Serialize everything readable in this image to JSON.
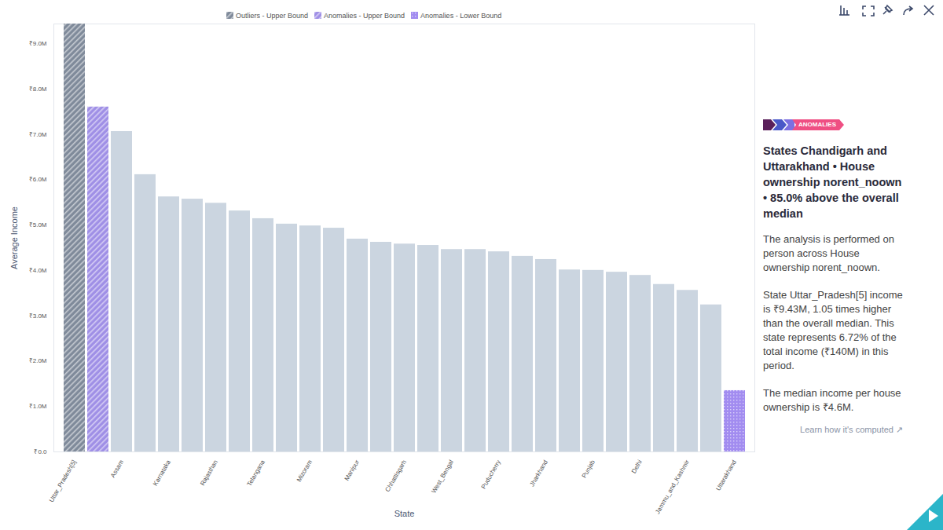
{
  "chart_data": {
    "type": "bar",
    "x_label": "State",
    "y_label": "Average Income",
    "categories": [
      "Uttar_Pradesh[5]",
      null,
      "Assam",
      null,
      "Karnataka",
      null,
      "Rajasthan",
      null,
      "Telangana",
      null,
      "Mizoram",
      null,
      "Manipur",
      null,
      "Chhattisgarh",
      null,
      "West_Bengal",
      null,
      "Puducherry",
      null,
      "Jharkhand",
      null,
      "Punjab",
      null,
      "Delhi",
      null,
      "Jammu_and_Kashmir",
      null,
      "Uttarakhand"
    ],
    "values": [
      9430000,
      7600000,
      7060000,
      6110000,
      5620000,
      5570000,
      5480000,
      5310000,
      5140000,
      5020000,
      4980000,
      4930000,
      4690000,
      4620000,
      4580000,
      4550000,
      4460000,
      4460000,
      4410000,
      4310000,
      4240000,
      4010000,
      4000000,
      3960000,
      3890000,
      3690000,
      3560000,
      3240000,
      1350000
    ],
    "colors": [
      "#7f8a9a",
      "#9f8fe6",
      "#cbd5e0",
      "#cbd5e0",
      "#cbd5e0",
      "#cbd5e0",
      "#cbd5e0",
      "#cbd5e0",
      "#cbd5e0",
      "#cbd5e0",
      "#cbd5e0",
      "#cbd5e0",
      "#cbd5e0",
      "#cbd5e0",
      "#cbd5e0",
      "#cbd5e0",
      "#cbd5e0",
      "#cbd5e0",
      "#cbd5e0",
      "#cbd5e0",
      "#cbd5e0",
      "#cbd5e0",
      "#cbd5e0",
      "#cbd5e0",
      "#cbd5e0",
      "#cbd5e0",
      "#cbd5e0",
      "#cbd5e0",
      "#a28cf0"
    ],
    "legend_items": [
      {
        "label": "Outliers - Upper Bound",
        "color": "#7f8a9a"
      },
      {
        "label": "Anomalies - Upper Bound",
        "color": "#9f8fe6"
      },
      {
        "label": "Anomalies - Lower Bound",
        "color": "#a28cf0"
      }
    ],
    "legend": "top",
    "ylim": [
      0,
      9430000
    ],
    "yticks": [
      {
        "value": 0,
        "label": "₹0.0"
      },
      {
        "value": 1000000,
        "label": "₹1.0M"
      },
      {
        "value": 2000000,
        "label": "₹2.0M"
      },
      {
        "value": 3000000,
        "label": "₹3.0M"
      },
      {
        "value": 4000000,
        "label": "₹4.0M"
      },
      {
        "value": 5000000,
        "label": "₹5.0M"
      },
      {
        "value": 6000000,
        "label": "₹6.0M"
      },
      {
        "value": 7000000,
        "label": "₹7.0M"
      },
      {
        "value": 8000000,
        "label": "₹8.0M"
      },
      {
        "value": 9000000,
        "label": "₹9.0M"
      }
    ],
    "grid": false,
    "panel": {
      "badge": "ANOMALIES",
      "heading": "States Chandigarh and Uttarakhand • House ownership norent_noown • 85.0% above the overall median",
      "paragraphs": [
        "The analysis is performed on person across House ownership norent_noown.",
        "State Uttar_Pradesh[5] income is ₹9.43M, 1.05 times higher than the overall median. This state represents 6.72% of the total income (₹140M) in this period.",
        "The median income per house ownership is ₹4.6M."
      ],
      "link": "Learn how it's computed"
    }
  }
}
